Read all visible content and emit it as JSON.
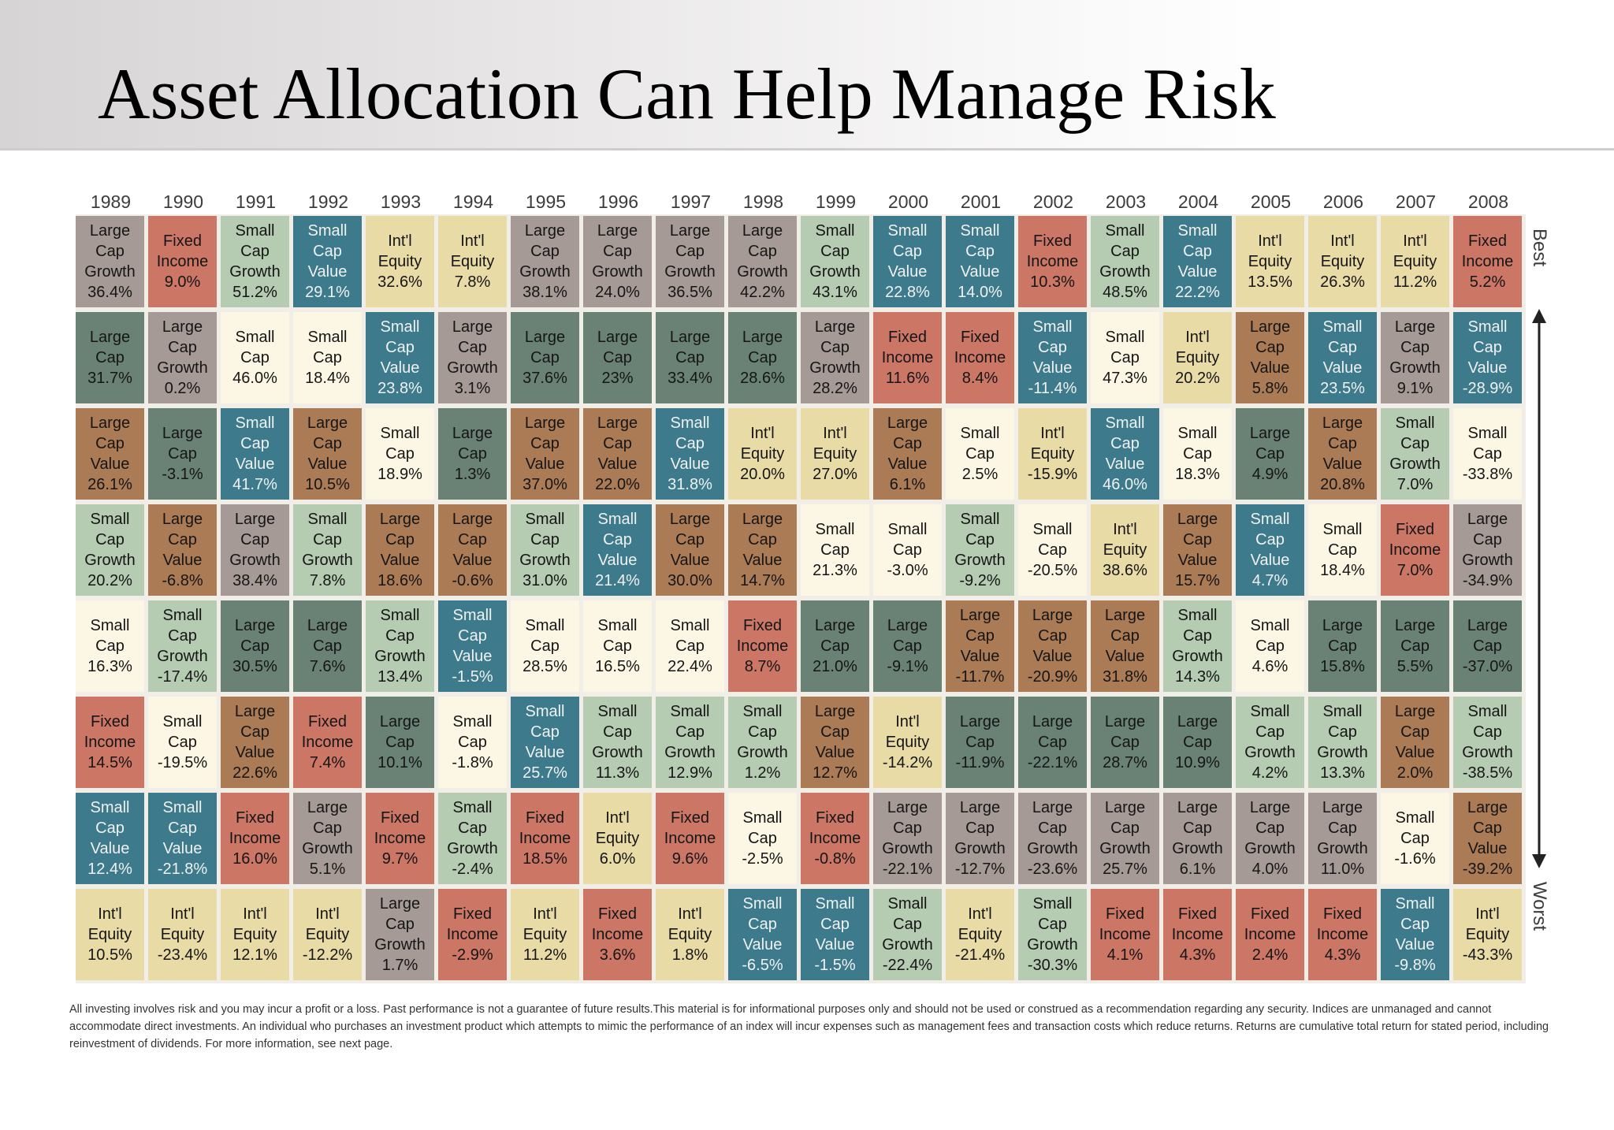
{
  "slide": {
    "title": "Asset Allocation Can Help Manage Risk",
    "best_label": "Best",
    "worst_label": "Worst",
    "footer": "All investing involves risk and you may incur a profit or a loss. Past performance is not a guarantee of future results.This material is for informational purposes only and should not be used or construed as a recommendation regarding any security.  Indices are unmanaged and cannot accommodate direct investments. An individual who purchases an investment product which attempts to mimic the performance of an index will incur expenses such as management fees and transaction costs which reduce returns. Returns are cumulative total return for stated period, including reinvestment of dividends. For more information, see next page."
  },
  "chart_data": {
    "type": "table",
    "x": [
      "1989",
      "1990",
      "1991",
      "1992",
      "1993",
      "1994",
      "1995",
      "1996",
      "1997",
      "1998",
      "1999",
      "2000",
      "2001",
      "2002",
      "2003",
      "2004",
      "2005",
      "2006",
      "2007",
      "2008"
    ],
    "rank_order": "best to worst",
    "colors": {
      "Large Cap Growth": "#a59a95",
      "Large Cap": "#6a8275",
      "Large Cap Value": "#aa7b55",
      "Small Cap Growth": "#b5ccb2",
      "Small Cap": "#fcf7e4",
      "Small Cap Value": "#3c7a8c",
      "Fixed Income": "#cc7766",
      "Int'l Equity": "#e8dba6"
    },
    "dark_text_classes": [
      "Small Cap Value"
    ],
    "columns": [
      [
        [
          "Large Cap Growth",
          "36.4%"
        ],
        [
          "Large Cap",
          "31.7%"
        ],
        [
          "Large Cap Value",
          "26.1%"
        ],
        [
          "Small Cap Growth",
          "20.2%"
        ],
        [
          "Small Cap",
          "16.3%"
        ],
        [
          "Fixed Income",
          "14.5%"
        ],
        [
          "Small Cap Value",
          "12.4%"
        ],
        [
          "Int'l Equity",
          "10.5%"
        ]
      ],
      [
        [
          "Fixed Income",
          "9.0%"
        ],
        [
          "Large Cap Growth",
          "0.2%"
        ],
        [
          "Large Cap",
          "-3.1%"
        ],
        [
          "Large Cap Value",
          "-6.8%"
        ],
        [
          "Small Cap Growth",
          "-17.4%"
        ],
        [
          "Small Cap",
          "-19.5%"
        ],
        [
          "Small Cap Value",
          "-21.8%"
        ],
        [
          "Int'l Equity",
          "-23.4%"
        ]
      ],
      [
        [
          "Small Cap Growth",
          "51.2%"
        ],
        [
          "Small Cap",
          "46.0%"
        ],
        [
          "Small Cap Value",
          "41.7%"
        ],
        [
          "Large Cap Growth",
          "38.4%"
        ],
        [
          "Large Cap",
          "30.5%"
        ],
        [
          "Large Cap Value",
          "22.6%"
        ],
        [
          "Fixed Income",
          "16.0%"
        ],
        [
          "Int'l Equity",
          "12.1%"
        ]
      ],
      [
        [
          "Small Cap Value",
          "29.1%"
        ],
        [
          "Small Cap",
          "18.4%"
        ],
        [
          "Large Cap Value",
          "10.5%"
        ],
        [
          "Small Cap Growth",
          "7.8%"
        ],
        [
          "Large Cap",
          "7.6%"
        ],
        [
          "Fixed Income",
          "7.4%"
        ],
        [
          "Large Cap Growth",
          "5.1%"
        ],
        [
          "Int'l Equity",
          "-12.2%"
        ]
      ],
      [
        [
          "Int'l Equity",
          "32.6%"
        ],
        [
          "Small Cap Value",
          "23.8%"
        ],
        [
          "Small Cap",
          "18.9%"
        ],
        [
          "Large Cap Value",
          "18.6%"
        ],
        [
          "Small Cap Growth",
          "13.4%"
        ],
        [
          "Large Cap",
          "10.1%"
        ],
        [
          "Fixed Income",
          "9.7%"
        ],
        [
          "Large Cap Growth",
          "1.7%"
        ]
      ],
      [
        [
          "Int'l Equity",
          "7.8%"
        ],
        [
          "Large Cap Growth",
          "3.1%"
        ],
        [
          "Large Cap",
          "1.3%"
        ],
        [
          "Large Cap Value",
          "-0.6%"
        ],
        [
          "Small Cap Value",
          "-1.5%"
        ],
        [
          "Small Cap",
          "-1.8%"
        ],
        [
          "Small Cap Growth",
          "-2.4%"
        ],
        [
          "Fixed Income",
          "-2.9%"
        ]
      ],
      [
        [
          "Large Cap Growth",
          "38.1%"
        ],
        [
          "Large Cap",
          "37.6%"
        ],
        [
          "Large Cap Value",
          "37.0%"
        ],
        [
          "Small Cap Growth",
          "31.0%"
        ],
        [
          "Small Cap",
          "28.5%"
        ],
        [
          "Small Cap Value",
          "25.7%"
        ],
        [
          "Fixed Income",
          "18.5%"
        ],
        [
          "Int'l Equity",
          "11.2%"
        ]
      ],
      [
        [
          "Large Cap Growth",
          "24.0%"
        ],
        [
          "Large Cap",
          "23%"
        ],
        [
          "Large Cap Value",
          "22.0%"
        ],
        [
          "Small Cap Value",
          "21.4%"
        ],
        [
          "Small Cap",
          "16.5%"
        ],
        [
          "Small Cap Growth",
          "11.3%"
        ],
        [
          "Int'l Equity",
          "6.0%"
        ],
        [
          "Fixed Income",
          "3.6%"
        ]
      ],
      [
        [
          "Large Cap Growth",
          "36.5%"
        ],
        [
          "Large Cap",
          "33.4%"
        ],
        [
          "Small Cap Value",
          "31.8%"
        ],
        [
          "Large Cap Value",
          "30.0%"
        ],
        [
          "Small Cap",
          "22.4%"
        ],
        [
          "Small Cap Growth",
          "12.9%"
        ],
        [
          "Fixed Income",
          "9.6%"
        ],
        [
          "Int'l Equity",
          "1.8%"
        ]
      ],
      [
        [
          "Large Cap Growth",
          "42.2%"
        ],
        [
          "Large Cap",
          "28.6%"
        ],
        [
          "Int'l Equity",
          "20.0%"
        ],
        [
          "Large Cap Value",
          "14.7%"
        ],
        [
          "Fixed Income",
          "8.7%"
        ],
        [
          "Small Cap Growth",
          "1.2%"
        ],
        [
          "Small Cap",
          "-2.5%"
        ],
        [
          "Small Cap Value",
          "-6.5%"
        ]
      ],
      [
        [
          "Small Cap Growth",
          "43.1%"
        ],
        [
          "Large Cap Growth",
          "28.2%"
        ],
        [
          "Int'l Equity",
          "27.0%"
        ],
        [
          "Small Cap",
          "21.3%"
        ],
        [
          "Large Cap",
          "21.0%"
        ],
        [
          "Large Cap Value",
          "12.7%"
        ],
        [
          "Fixed Income",
          "-0.8%"
        ],
        [
          "Small Cap Value",
          "-1.5%"
        ]
      ],
      [
        [
          "Small Cap Value",
          "22.8%"
        ],
        [
          "Fixed Income",
          "11.6%"
        ],
        [
          "Large Cap Value",
          "6.1%"
        ],
        [
          "Small Cap",
          "-3.0%"
        ],
        [
          "Large Cap",
          "-9.1%"
        ],
        [
          "Int'l Equity",
          "-14.2%"
        ],
        [
          "Large Cap Growth",
          "-22.1%"
        ],
        [
          "Small Cap Growth",
          "-22.4%"
        ]
      ],
      [
        [
          "Small Cap Value",
          "14.0%"
        ],
        [
          "Fixed Income",
          "8.4%"
        ],
        [
          "Small Cap",
          "2.5%"
        ],
        [
          "Small Cap Growth",
          "-9.2%"
        ],
        [
          "Large Cap Value",
          "-11.7%"
        ],
        [
          "Large Cap",
          "-11.9%"
        ],
        [
          "Large Cap Growth",
          "-12.7%"
        ],
        [
          "Int'l Equity",
          "-21.4%"
        ]
      ],
      [
        [
          "Fixed Income",
          "10.3%"
        ],
        [
          "Small Cap Value",
          "-11.4%"
        ],
        [
          "Int'l Equity",
          "-15.9%"
        ],
        [
          "Small Cap",
          "-20.5%"
        ],
        [
          "Large Cap Value",
          "-20.9%"
        ],
        [
          "Large Cap",
          "-22.1%"
        ],
        [
          "Large Cap Growth",
          "-23.6%"
        ],
        [
          "Small Cap Growth",
          "-30.3%"
        ]
      ],
      [
        [
          "Small Cap Growth",
          "48.5%"
        ],
        [
          "Small Cap",
          "47.3%"
        ],
        [
          "Small Cap Value",
          "46.0%"
        ],
        [
          "Int'l Equity",
          "38.6%"
        ],
        [
          "Large Cap Value",
          "31.8%"
        ],
        [
          "Large Cap",
          "28.7%"
        ],
        [
          "Large Cap Growth",
          "25.7%"
        ],
        [
          "Fixed Income",
          "4.1%"
        ]
      ],
      [
        [
          "Small Cap Value",
          "22.2%"
        ],
        [
          "Int'l Equity",
          "20.2%"
        ],
        [
          "Small Cap",
          "18.3%"
        ],
        [
          "Large Cap Value",
          "15.7%"
        ],
        [
          "Small Cap Growth",
          "14.3%"
        ],
        [
          "Large Cap",
          "10.9%"
        ],
        [
          "Large Cap Growth",
          "6.1%"
        ],
        [
          "Fixed Income",
          "4.3%"
        ]
      ],
      [
        [
          "Int'l Equity",
          "13.5%"
        ],
        [
          "Large Cap Value",
          "5.8%"
        ],
        [
          "Large Cap",
          "4.9%"
        ],
        [
          "Small Cap Value",
          "4.7%"
        ],
        [
          "Small Cap",
          "4.6%"
        ],
        [
          "Small Cap Growth",
          "4.2%"
        ],
        [
          "Large Cap Growth",
          "4.0%"
        ],
        [
          "Fixed Income",
          "2.4%"
        ]
      ],
      [
        [
          "Int'l Equity",
          "26.3%"
        ],
        [
          "Small Cap Value",
          "23.5%"
        ],
        [
          "Large Cap Value",
          "20.8%"
        ],
        [
          "Small Cap",
          "18.4%"
        ],
        [
          "Large Cap",
          "15.8%"
        ],
        [
          "Small Cap Growth",
          "13.3%"
        ],
        [
          "Large Cap Growth",
          "11.0%"
        ],
        [
          "Fixed Income",
          "4.3%"
        ]
      ],
      [
        [
          "Int'l Equity",
          "11.2%"
        ],
        [
          "Large Cap Growth",
          "9.1%"
        ],
        [
          "Small Cap Growth",
          "7.0%"
        ],
        [
          "Fixed Income",
          "7.0%"
        ],
        [
          "Large Cap",
          "5.5%"
        ],
        [
          "Large Cap Value",
          "2.0%"
        ],
        [
          "Small Cap",
          "-1.6%"
        ],
        [
          "Small Cap Value",
          "-9.8%"
        ]
      ],
      [
        [
          "Fixed Income",
          "5.2%"
        ],
        [
          "Small Cap Value",
          "-28.9%"
        ],
        [
          "Small Cap",
          "-33.8%"
        ],
        [
          "Large Cap Growth",
          "-34.9%"
        ],
        [
          "Large Cap",
          "-37.0%"
        ],
        [
          "Small Cap Growth",
          "-38.5%"
        ],
        [
          "Large Cap Value",
          "-39.2%"
        ],
        [
          "Int'l Equity",
          "-43.3%"
        ]
      ]
    ]
  }
}
